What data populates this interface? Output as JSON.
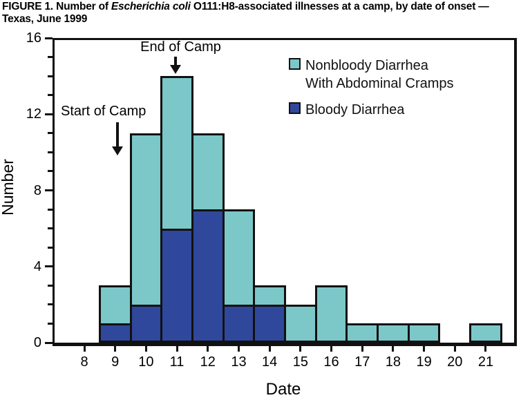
{
  "title": {
    "prefix": "FIGURE 1. Number of ",
    "italic": "Escherichia coli",
    "suffix": " O111:H8-associated illnesses at a camp, by date of onset — Texas, June 1999"
  },
  "axes": {
    "y_label": "Number",
    "x_label": "Date"
  },
  "annotations": {
    "start_label": "Start of Camp",
    "end_label": "End of Camp"
  },
  "legend": {
    "items": [
      {
        "lines": [
          "Nonbloody Diarrhea",
          "With Abdominal Cramps"
        ],
        "color": "#7CC8C9"
      },
      {
        "lines": [
          "Bloody Diarrhea"
        ],
        "color": "#30489B"
      }
    ]
  },
  "colors": {
    "nonbloody": "#7CC8C9",
    "bloody": "#30489B",
    "ink": "#111111"
  },
  "chart_data": {
    "type": "bar",
    "stacked": true,
    "title": "FIGURE 1. Number of Escherichia coli O111:H8-associated illnesses at a camp, by date of onset — Texas, June 1999",
    "xlabel": "Date",
    "ylabel": "Number",
    "categories": [
      "8",
      "9",
      "10",
      "11",
      "12",
      "13",
      "14",
      "15",
      "16",
      "17",
      "18",
      "19",
      "20",
      "21"
    ],
    "series": [
      {
        "name": "Bloody Diarrhea",
        "color": "#30489B",
        "values": [
          0,
          1,
          2,
          6,
          7,
          2,
          2,
          0,
          0,
          0,
          0,
          0,
          0,
          0
        ]
      },
      {
        "name": "Nonbloody Diarrhea With Abdominal Cramps",
        "color": "#7CC8C9",
        "values": [
          0,
          2,
          9,
          8,
          4,
          5,
          1,
          2,
          3,
          1,
          1,
          1,
          0,
          1
        ]
      }
    ],
    "stack_totals": [
      0,
      3,
      11,
      14,
      11,
      7,
      3,
      2,
      3,
      1,
      1,
      1,
      0,
      1
    ],
    "ylim": [
      0,
      16
    ],
    "y_major_ticks": [
      0,
      4,
      8,
      12,
      16
    ],
    "y_minor_step": 1,
    "grid": false,
    "legend_position": "upper-right-inside",
    "annotations": [
      {
        "text": "Start of Camp",
        "arrow_at_category": "9"
      },
      {
        "text": "End of Camp",
        "arrow_at_category": "11"
      }
    ]
  }
}
